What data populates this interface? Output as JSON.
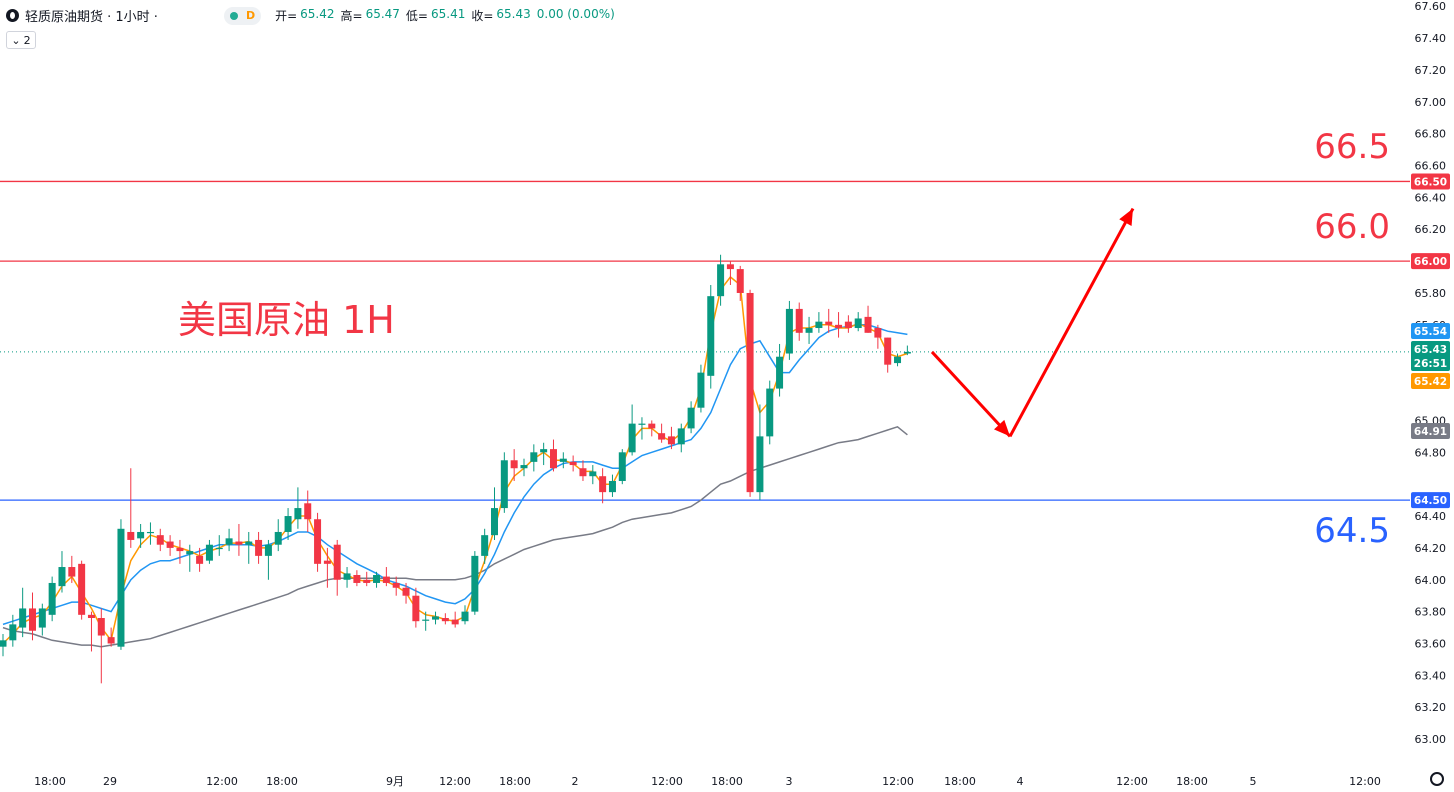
{
  "header": {
    "title": "轻质原油期货 · 1小时 ·",
    "d_badge": "D",
    "ohlc": [
      {
        "label": "开=",
        "value": "65.42"
      },
      {
        "label": "高=",
        "value": "65.47"
      },
      {
        "label": "低=",
        "value": "65.41"
      },
      {
        "label": "收=",
        "value": "65.43"
      },
      {
        "label": "",
        "value": "0.00 (0.00%)"
      }
    ],
    "indicator_toggle": "2"
  },
  "chart_data": {
    "type": "candlestick",
    "annotation_title": "美国原油 1H",
    "ylim": [
      62.85,
      67.62
    ],
    "y_ticks": [
      "67.60",
      "67.40",
      "67.20",
      "67.00",
      "66.80",
      "66.60",
      "66.40",
      "66.20",
      "65.80",
      "65.60",
      "65.00",
      "64.80",
      "64.40",
      "64.20",
      "64.00",
      "63.80",
      "63.60",
      "63.40",
      "63.20",
      "63.00"
    ],
    "x_ticks": [
      "18:00",
      "29",
      "12:00",
      "18:00",
      "9月",
      "12:00",
      "18:00",
      "2",
      "12:00",
      "18:00",
      "3",
      "12:00",
      "18:00",
      "4",
      "12:00",
      "18:00",
      "5",
      "12:00"
    ],
    "candles": [
      {
        "o": 63.58,
        "h": 63.66,
        "l": 63.52,
        "c": 63.62
      },
      {
        "o": 63.62,
        "h": 63.78,
        "l": 63.58,
        "c": 63.72
      },
      {
        "o": 63.7,
        "h": 63.95,
        "l": 63.64,
        "c": 63.82
      },
      {
        "o": 63.82,
        "h": 63.92,
        "l": 63.62,
        "c": 63.68
      },
      {
        "o": 63.7,
        "h": 63.85,
        "l": 63.65,
        "c": 63.82
      },
      {
        "o": 63.78,
        "h": 64.02,
        "l": 63.74,
        "c": 63.98
      },
      {
        "o": 63.96,
        "h": 64.18,
        "l": 63.92,
        "c": 64.08
      },
      {
        "o": 64.08,
        "h": 64.15,
        "l": 63.98,
        "c": 64.02
      },
      {
        "o": 64.1,
        "h": 64.12,
        "l": 63.75,
        "c": 63.78
      },
      {
        "o": 63.78,
        "h": 63.8,
        "l": 63.55,
        "c": 63.76
      },
      {
        "o": 63.76,
        "h": 63.82,
        "l": 63.35,
        "c": 63.65
      },
      {
        "o": 63.64,
        "h": 63.7,
        "l": 63.58,
        "c": 63.6
      },
      {
        "o": 63.58,
        "h": 64.38,
        "l": 63.56,
        "c": 64.32
      },
      {
        "o": 64.3,
        "h": 64.7,
        "l": 64.2,
        "c": 64.25
      },
      {
        "o": 64.26,
        "h": 64.35,
        "l": 64.2,
        "c": 64.3
      },
      {
        "o": 64.3,
        "h": 64.36,
        "l": 64.22,
        "c": 64.3
      },
      {
        "o": 64.28,
        "h": 64.32,
        "l": 64.18,
        "c": 64.22
      },
      {
        "o": 64.24,
        "h": 64.28,
        "l": 64.15,
        "c": 64.2
      },
      {
        "o": 64.2,
        "h": 64.25,
        "l": 64.1,
        "c": 64.18
      },
      {
        "o": 64.16,
        "h": 64.22,
        "l": 64.05,
        "c": 64.18
      },
      {
        "o": 64.15,
        "h": 64.2,
        "l": 64.05,
        "c": 64.1
      },
      {
        "o": 64.12,
        "h": 64.25,
        "l": 64.1,
        "c": 64.22
      },
      {
        "o": 64.2,
        "h": 64.28,
        "l": 64.15,
        "c": 64.2
      },
      {
        "o": 64.22,
        "h": 64.32,
        "l": 64.18,
        "c": 64.26
      },
      {
        "o": 64.24,
        "h": 64.35,
        "l": 64.15,
        "c": 64.22
      },
      {
        "o": 64.22,
        "h": 64.3,
        "l": 64.1,
        "c": 64.24
      },
      {
        "o": 64.25,
        "h": 64.3,
        "l": 64.1,
        "c": 64.15
      },
      {
        "o": 64.15,
        "h": 64.25,
        "l": 64.0,
        "c": 64.22
      },
      {
        "o": 64.22,
        "h": 64.38,
        "l": 64.18,
        "c": 64.3
      },
      {
        "o": 64.3,
        "h": 64.45,
        "l": 64.25,
        "c": 64.4
      },
      {
        "o": 64.38,
        "h": 64.58,
        "l": 64.32,
        "c": 64.45
      },
      {
        "o": 64.48,
        "h": 64.56,
        "l": 64.3,
        "c": 64.38
      },
      {
        "o": 64.38,
        "h": 64.42,
        "l": 64.05,
        "c": 64.1
      },
      {
        "o": 64.12,
        "h": 64.2,
        "l": 63.95,
        "c": 64.1
      },
      {
        "o": 64.22,
        "h": 64.25,
        "l": 63.9,
        "c": 64.0
      },
      {
        "o": 64.0,
        "h": 64.08,
        "l": 63.95,
        "c": 64.04
      },
      {
        "o": 64.03,
        "h": 64.06,
        "l": 63.96,
        "c": 63.98
      },
      {
        "o": 64.0,
        "h": 64.05,
        "l": 63.96,
        "c": 63.98
      },
      {
        "o": 63.98,
        "h": 64.05,
        "l": 63.95,
        "c": 64.03
      },
      {
        "o": 64.02,
        "h": 64.08,
        "l": 63.96,
        "c": 63.98
      },
      {
        "o": 63.98,
        "h": 64.02,
        "l": 63.9,
        "c": 63.95
      },
      {
        "o": 63.95,
        "h": 63.98,
        "l": 63.85,
        "c": 63.9
      },
      {
        "o": 63.9,
        "h": 63.95,
        "l": 63.7,
        "c": 63.74
      },
      {
        "o": 63.75,
        "h": 63.8,
        "l": 63.68,
        "c": 63.75
      },
      {
        "o": 63.75,
        "h": 63.8,
        "l": 63.72,
        "c": 63.77
      },
      {
        "o": 63.76,
        "h": 63.79,
        "l": 63.72,
        "c": 63.74
      },
      {
        "o": 63.75,
        "h": 63.8,
        "l": 63.7,
        "c": 63.72
      },
      {
        "o": 63.74,
        "h": 63.84,
        "l": 63.72,
        "c": 63.8
      },
      {
        "o": 63.8,
        "h": 64.18,
        "l": 63.78,
        "c": 64.15
      },
      {
        "o": 64.15,
        "h": 64.32,
        "l": 64.1,
        "c": 64.28
      },
      {
        "o": 64.28,
        "h": 64.58,
        "l": 64.25,
        "c": 64.45
      },
      {
        "o": 64.45,
        "h": 64.8,
        "l": 64.42,
        "c": 64.75
      },
      {
        "o": 64.75,
        "h": 64.82,
        "l": 64.62,
        "c": 64.7
      },
      {
        "o": 64.7,
        "h": 64.76,
        "l": 64.65,
        "c": 64.72
      },
      {
        "o": 64.74,
        "h": 64.85,
        "l": 64.68,
        "c": 64.8
      },
      {
        "o": 64.8,
        "h": 64.86,
        "l": 64.72,
        "c": 64.82
      },
      {
        "o": 64.82,
        "h": 64.88,
        "l": 64.68,
        "c": 64.7
      },
      {
        "o": 64.74,
        "h": 64.8,
        "l": 64.7,
        "c": 64.76
      },
      {
        "o": 64.74,
        "h": 64.78,
        "l": 64.68,
        "c": 64.72
      },
      {
        "o": 64.7,
        "h": 64.75,
        "l": 64.62,
        "c": 64.65
      },
      {
        "o": 64.65,
        "h": 64.72,
        "l": 64.6,
        "c": 64.68
      },
      {
        "o": 64.65,
        "h": 64.7,
        "l": 64.48,
        "c": 64.55
      },
      {
        "o": 64.55,
        "h": 64.66,
        "l": 64.52,
        "c": 64.62
      },
      {
        "o": 64.62,
        "h": 64.82,
        "l": 64.6,
        "c": 64.8
      },
      {
        "o": 64.8,
        "h": 65.1,
        "l": 64.78,
        "c": 64.98
      },
      {
        "o": 64.98,
        "h": 65.02,
        "l": 64.88,
        "c": 64.98
      },
      {
        "o": 64.98,
        "h": 65.0,
        "l": 64.9,
        "c": 64.95
      },
      {
        "o": 64.92,
        "h": 64.98,
        "l": 64.86,
        "c": 64.88
      },
      {
        "o": 64.9,
        "h": 64.96,
        "l": 64.82,
        "c": 64.85
      },
      {
        "o": 64.85,
        "h": 64.98,
        "l": 64.8,
        "c": 64.95
      },
      {
        "o": 64.95,
        "h": 65.12,
        "l": 64.92,
        "c": 65.08
      },
      {
        "o": 65.08,
        "h": 65.35,
        "l": 65.05,
        "c": 65.3
      },
      {
        "o": 65.28,
        "h": 65.85,
        "l": 65.2,
        "c": 65.78
      },
      {
        "o": 65.78,
        "h": 66.04,
        "l": 65.72,
        "c": 65.98
      },
      {
        "o": 65.98,
        "h": 66.0,
        "l": 65.85,
        "c": 65.95
      },
      {
        "o": 65.95,
        "h": 65.97,
        "l": 65.75,
        "c": 65.8
      },
      {
        "o": 65.8,
        "h": 65.82,
        "l": 64.52,
        "c": 64.55
      },
      {
        "o": 64.55,
        "h": 65.1,
        "l": 64.5,
        "c": 64.9
      },
      {
        "o": 64.9,
        "h": 65.25,
        "l": 64.85,
        "c": 65.2
      },
      {
        "o": 65.2,
        "h": 65.48,
        "l": 65.15,
        "c": 65.4
      },
      {
        "o": 65.42,
        "h": 65.75,
        "l": 65.38,
        "c": 65.7
      },
      {
        "o": 65.7,
        "h": 65.74,
        "l": 65.5,
        "c": 65.55
      },
      {
        "o": 65.55,
        "h": 65.65,
        "l": 65.48,
        "c": 65.58
      },
      {
        "o": 65.58,
        "h": 65.68,
        "l": 65.55,
        "c": 65.62
      },
      {
        "o": 65.62,
        "h": 65.7,
        "l": 65.55,
        "c": 65.6
      },
      {
        "o": 65.6,
        "h": 65.68,
        "l": 65.52,
        "c": 65.58
      },
      {
        "o": 65.62,
        "h": 65.66,
        "l": 65.55,
        "c": 65.58
      },
      {
        "o": 65.58,
        "h": 65.68,
        "l": 65.56,
        "c": 65.64
      },
      {
        "o": 65.65,
        "h": 65.72,
        "l": 65.55,
        "c": 65.55
      },
      {
        "o": 65.58,
        "h": 65.6,
        "l": 65.45,
        "c": 65.52
      },
      {
        "o": 65.52,
        "h": 65.52,
        "l": 65.3,
        "c": 65.35
      },
      {
        "o": 65.36,
        "h": 65.42,
        "l": 65.34,
        "c": 65.4
      },
      {
        "o": 65.42,
        "h": 65.47,
        "l": 65.41,
        "c": 65.43
      }
    ],
    "ma_fast": [
      63.6,
      63.66,
      63.73,
      63.76,
      63.78,
      63.86,
      63.96,
      64.02,
      63.92,
      63.82,
      63.7,
      63.62,
      63.9,
      64.12,
      64.22,
      64.28,
      64.26,
      64.22,
      64.2,
      64.18,
      64.15,
      64.18,
      64.2,
      64.23,
      64.23,
      64.24,
      64.2,
      64.2,
      64.25,
      64.33,
      64.4,
      64.4,
      64.25,
      64.15,
      64.06,
      64.03,
      64.0,
      63.99,
      64.0,
      63.99,
      63.96,
      63.92,
      63.82,
      63.78,
      63.77,
      63.75,
      63.74,
      63.77,
      63.95,
      64.12,
      64.32,
      64.55,
      64.65,
      64.7,
      64.76,
      64.8,
      64.75,
      64.75,
      64.73,
      64.68,
      64.68,
      64.6,
      64.6,
      64.72,
      64.88,
      64.95,
      64.95,
      64.9,
      64.87,
      64.92,
      65.02,
      65.2,
      65.55,
      65.82,
      65.9,
      65.85,
      65.25,
      65.05,
      65.12,
      65.3,
      65.55,
      65.58,
      65.58,
      65.6,
      65.6,
      65.58,
      65.58,
      65.61,
      65.58,
      65.55,
      65.42,
      65.4,
      65.42
    ],
    "ma_slow": [
      63.72,
      63.74,
      63.76,
      63.78,
      63.8,
      63.82,
      63.84,
      63.86,
      63.86,
      63.84,
      63.82,
      63.8,
      63.9,
      64.0,
      64.06,
      64.1,
      64.12,
      64.12,
      64.14,
      64.16,
      64.18,
      64.2,
      64.22,
      64.22,
      64.22,
      64.22,
      64.21,
      64.22,
      64.24,
      64.27,
      64.3,
      64.3,
      64.27,
      64.22,
      64.18,
      64.14,
      64.1,
      64.07,
      64.04,
      64.0,
      63.98,
      63.96,
      63.93,
      63.9,
      63.88,
      63.86,
      63.85,
      63.88,
      63.94,
      64.04,
      64.16,
      64.3,
      64.42,
      64.52,
      64.6,
      64.66,
      64.7,
      64.73,
      64.74,
      64.74,
      64.74,
      64.72,
      64.7,
      64.7,
      64.74,
      64.78,
      64.8,
      64.82,
      64.84,
      64.86,
      64.88,
      64.95,
      65.05,
      65.2,
      65.35,
      65.45,
      65.48,
      65.5,
      65.4,
      65.3,
      65.3,
      65.38,
      65.45,
      65.52,
      65.56,
      65.58,
      65.59,
      65.6,
      65.6,
      65.58,
      65.56,
      65.55,
      65.54
    ],
    "ma_long": [
      63.7,
      63.68,
      63.67,
      63.66,
      63.64,
      63.62,
      63.61,
      63.6,
      63.59,
      63.59,
      63.58,
      63.59,
      63.6,
      63.61,
      63.62,
      63.63,
      63.65,
      63.67,
      63.69,
      63.71,
      63.73,
      63.75,
      63.77,
      63.79,
      63.81,
      63.83,
      63.85,
      63.87,
      63.89,
      63.91,
      63.94,
      63.96,
      63.98,
      64.0,
      64.01,
      64.01,
      64.01,
      64.01,
      64.01,
      64.01,
      64.01,
      64.01,
      64.0,
      64.0,
      64.0,
      64.0,
      64.0,
      64.01,
      64.03,
      64.06,
      64.1,
      64.13,
      64.16,
      64.19,
      64.21,
      64.23,
      64.25,
      64.26,
      64.27,
      64.28,
      64.29,
      64.31,
      64.33,
      64.36,
      64.38,
      64.39,
      64.4,
      64.41,
      64.42,
      64.44,
      64.46,
      64.5,
      64.55,
      64.6,
      64.62,
      64.65,
      64.68,
      64.7,
      64.72,
      64.74,
      64.76,
      64.78,
      64.8,
      64.82,
      64.84,
      64.86,
      64.87,
      64.88,
      64.9,
      64.92,
      64.94,
      64.96,
      64.91
    ],
    "levels": [
      {
        "value": 66.5,
        "label": "66.5",
        "badge": "66.50",
        "color": "#f23645"
      },
      {
        "value": 66.0,
        "label": "66.0",
        "badge": "66.00",
        "color": "#f23645"
      },
      {
        "value": 64.5,
        "label": "64.5",
        "badge": "64.50",
        "color": "#2962ff"
      }
    ],
    "price_badges": [
      {
        "value": 65.54,
        "text": "65.54",
        "color": "#2196f3"
      },
      {
        "value": 65.43,
        "text": "65.43",
        "sub": "26:51",
        "color": "#089981"
      },
      {
        "value": 65.42,
        "text": "65.42",
        "color": "#ff9800"
      },
      {
        "value": 64.91,
        "text": "64.91",
        "color": "#787b86"
      }
    ],
    "current_price": 65.43,
    "projection": [
      {
        "x": 0,
        "y": 65.43
      },
      {
        "x": 1,
        "y": 64.9
      },
      {
        "x": 2,
        "y": 66.33
      }
    ],
    "colors": {
      "up": "#089981",
      "down": "#f23645",
      "ma_fast": "#ff9800",
      "ma_slow": "#2196f3",
      "ma_long": "#787b86",
      "arrow": "#ff0000"
    }
  }
}
